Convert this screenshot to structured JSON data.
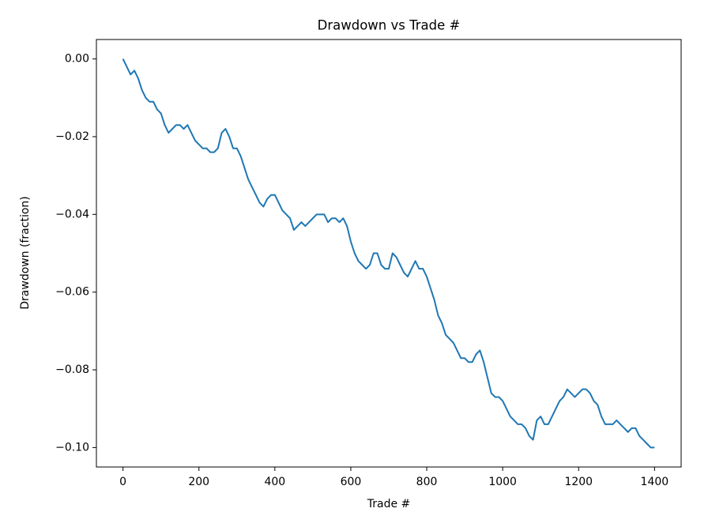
{
  "chart_data": {
    "type": "line",
    "title": "Drawdown vs Trade #",
    "x_label": "Trade #",
    "y_label": "Drawdown (fraction)",
    "x": [
      0,
      10,
      20,
      30,
      40,
      50,
      60,
      70,
      80,
      90,
      100,
      110,
      120,
      130,
      140,
      150,
      160,
      170,
      180,
      190,
      200,
      210,
      220,
      230,
      240,
      250,
      260,
      270,
      280,
      290,
      300,
      310,
      320,
      330,
      340,
      350,
      360,
      370,
      380,
      390,
      400,
      410,
      420,
      430,
      440,
      450,
      460,
      470,
      480,
      490,
      500,
      510,
      520,
      530,
      540,
      550,
      560,
      570,
      580,
      590,
      600,
      610,
      620,
      630,
      640,
      650,
      660,
      670,
      680,
      690,
      700,
      710,
      720,
      730,
      740,
      750,
      760,
      770,
      780,
      790,
      800,
      810,
      820,
      830,
      840,
      850,
      860,
      870,
      880,
      890,
      900,
      910,
      920,
      930,
      940,
      950,
      960,
      970,
      980,
      990,
      1000,
      1010,
      1020,
      1030,
      1040,
      1050,
      1060,
      1070,
      1080,
      1090,
      1100,
      1110,
      1120,
      1130,
      1140,
      1150,
      1160,
      1170,
      1180,
      1190,
      1200,
      1210,
      1220,
      1230,
      1240,
      1250,
      1260,
      1270,
      1280,
      1290,
      1300,
      1310,
      1320,
      1330,
      1340,
      1350,
      1360,
      1370,
      1380,
      1390,
      1400
    ],
    "series": [
      {
        "name": "Drawdown",
        "color": "#1f77b4",
        "values": [
          0,
          -0.002,
          -0.004,
          -0.003,
          -0.005,
          -0.008,
          -0.01,
          -0.011,
          -0.011,
          -0.013,
          -0.014,
          -0.017,
          -0.019,
          -0.018,
          -0.017,
          -0.017,
          -0.018,
          -0.017,
          -0.019,
          -0.021,
          -0.022,
          -0.023,
          -0.023,
          -0.024,
          -0.024,
          -0.023,
          -0.019,
          -0.018,
          -0.02,
          -0.023,
          -0.023,
          -0.025,
          -0.028,
          -0.031,
          -0.033,
          -0.035,
          -0.037,
          -0.038,
          -0.036,
          -0.035,
          -0.035,
          -0.037,
          -0.039,
          -0.04,
          -0.041,
          -0.044,
          -0.043,
          -0.042,
          -0.043,
          -0.042,
          -0.041,
          -0.04,
          -0.04,
          -0.04,
          -0.042,
          -0.041,
          -0.041,
          -0.042,
          -0.041,
          -0.043,
          -0.047,
          -0.05,
          -0.052,
          -0.053,
          -0.054,
          -0.053,
          -0.05,
          -0.05,
          -0.053,
          -0.054,
          -0.054,
          -0.05,
          -0.051,
          -0.053,
          -0.055,
          -0.056,
          -0.054,
          -0.052,
          -0.054,
          -0.054,
          -0.056,
          -0.059,
          -0.062,
          -0.066,
          -0.068,
          -0.071,
          -0.072,
          -0.073,
          -0.075,
          -0.077,
          -0.077,
          -0.078,
          -0.078,
          -0.076,
          -0.075,
          -0.078,
          -0.082,
          -0.086,
          -0.087,
          -0.087,
          -0.088,
          -0.09,
          -0.092,
          -0.093,
          -0.094,
          -0.094,
          -0.095,
          -0.097,
          -0.098,
          -0.093,
          -0.092,
          -0.094,
          -0.094,
          -0.092,
          -0.09,
          -0.088,
          -0.087,
          -0.085,
          -0.086,
          -0.087,
          -0.086,
          -0.085,
          -0.085,
          -0.086,
          -0.088,
          -0.089,
          -0.092,
          -0.094,
          -0.094,
          -0.094,
          -0.093,
          -0.094,
          -0.095,
          -0.096,
          -0.095,
          -0.095,
          -0.097,
          -0.098,
          -0.099,
          -0.1,
          -0.1
        ]
      }
    ],
    "xlim": [
      -70,
      1470
    ],
    "ylim": [
      -0.105,
      0.005
    ],
    "xticks": [
      0,
      200,
      400,
      600,
      800,
      1000,
      1200,
      1400
    ],
    "yticks": [
      {
        "value": 0,
        "label": "0.00"
      },
      {
        "value": -0.02,
        "label": "−0.02"
      },
      {
        "value": -0.04,
        "label": "−0.04"
      },
      {
        "value": -0.06,
        "label": "−0.06"
      },
      {
        "value": -0.08,
        "label": "−0.08"
      },
      {
        "value": -0.1,
        "label": "−0.10"
      }
    ],
    "grid": false
  }
}
